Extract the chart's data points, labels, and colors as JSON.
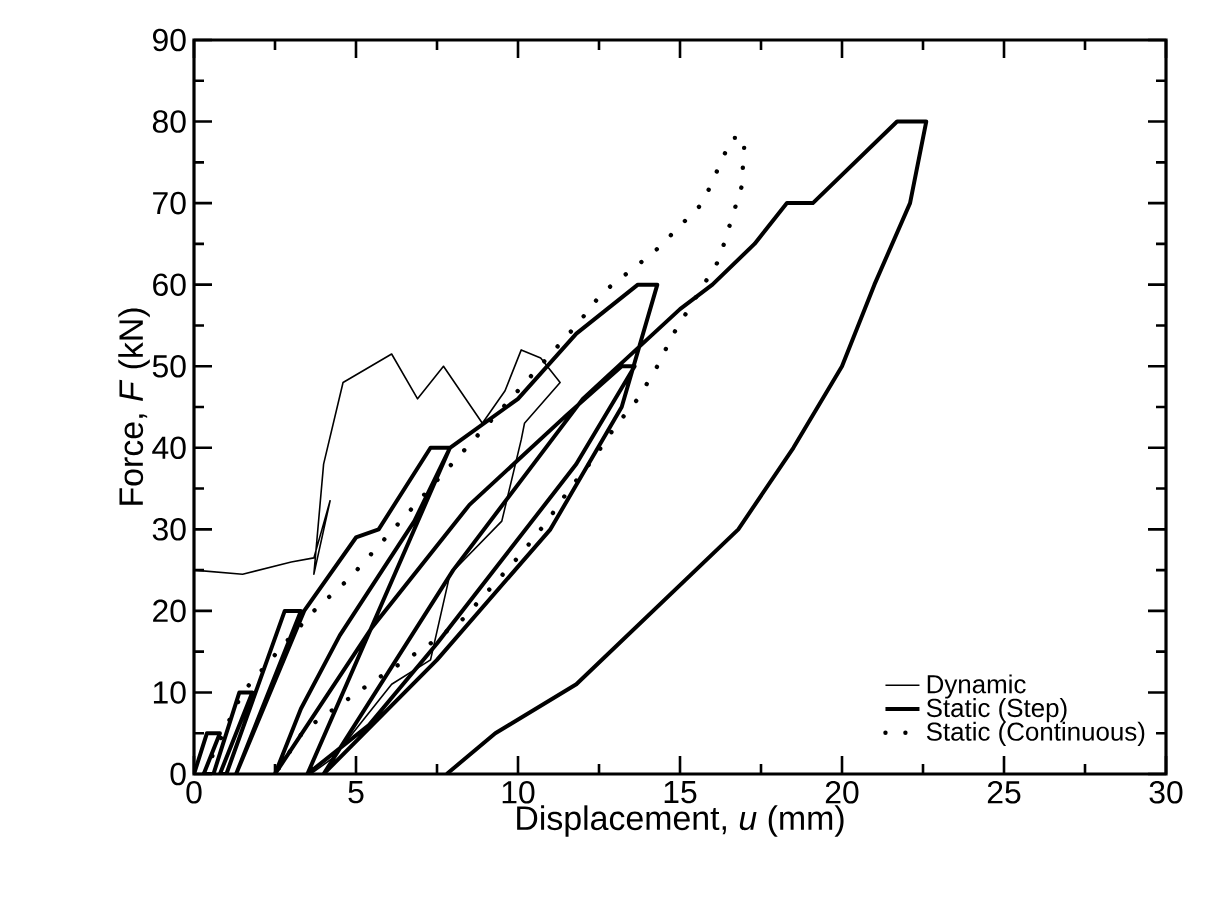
{
  "chart_data": {
    "type": "line",
    "xlabel": "Displacement, *u* (mm)",
    "ylabel": "Force, *F* (kN)",
    "xlim": [
      0,
      30
    ],
    "xticks": [
      0,
      5,
      10,
      15,
      20,
      25,
      30
    ],
    "ylim": [
      0,
      90
    ],
    "yticks": [
      0,
      10,
      20,
      30,
      40,
      50,
      60,
      70,
      80,
      90
    ],
    "grid": false,
    "legend": "bottom right",
    "series": [
      {
        "name": "Dynamic",
        "color": "#000000",
        "line_style": "solid",
        "x": [
          0,
          1.5,
          3,
          3.7,
          4.2,
          3.7,
          4.0,
          4.6,
          6.1,
          6.9,
          7.7,
          8.9,
          9.6,
          10.1,
          10.7,
          11.3,
          10.2,
          10.1,
          9.5,
          7.9,
          7.3,
          6.1,
          5.1,
          4.3,
          3.6
        ],
        "values": [
          25,
          24.5,
          26,
          26.5,
          33.5,
          24.5,
          38,
          48,
          51.5,
          46,
          50,
          43,
          47,
          52,
          51,
          48,
          43,
          41,
          31,
          24.5,
          14,
          11,
          6,
          2,
          0
        ]
      },
      {
        "name": "Static (Step)",
        "color": "#000000",
        "line_style": "solid",
        "x": [
          0,
          0.4,
          0.8,
          0.3,
          0.6,
          1.4,
          1.8,
          0.8,
          1.0,
          2.8,
          3.3,
          1.3,
          3.4,
          5.0,
          5.7,
          7.3,
          7.9,
          6.8,
          4.5,
          3.3,
          2.5,
          5.5,
          8.5,
          11.5,
          13.2,
          13.6,
          11.8,
          7.5,
          5.4,
          3.5,
          7.9,
          10.0,
          11.8,
          13.7,
          14.3,
          13.2,
          11.0,
          7.5,
          4.0,
          8.0,
          12.0,
          15.0,
          16.0,
          17.3,
          18.3,
          19.1,
          21.7,
          22.6,
          22.1,
          21.0,
          20.0,
          18.5,
          16.8,
          11.8,
          9.3,
          7.8
        ],
        "values": [
          0,
          5,
          5,
          0,
          0,
          10,
          10,
          0,
          0,
          20,
          20,
          0,
          20,
          29,
          30,
          40,
          40,
          31,
          17,
          8,
          0,
          18,
          33,
          44,
          50,
          50,
          38,
          16,
          6,
          0,
          40,
          46,
          54,
          60,
          60,
          45,
          30,
          14,
          0,
          25,
          46,
          57,
          60,
          65,
          70,
          70,
          80,
          80,
          70,
          60,
          50,
          40,
          30,
          11,
          5,
          0
        ]
      },
      {
        "name": "Static (Continuous)",
        "color": "#000000",
        "line_style": "dotted",
        "x": [
          0.3,
          1.5,
          2.8,
          3.7,
          4.8,
          5.7,
          7.5,
          10.0,
          11.8,
          12.6,
          14.2,
          15.7,
          16.6,
          17.0,
          16.9,
          16.2,
          14.8,
          14.3,
          13.7,
          13.0,
          12.3,
          11.6,
          10.9,
          10.1,
          9.2,
          8.3,
          7.3,
          5.4,
          3.4,
          2.5
        ],
        "values": [
          0,
          10,
          16,
          20,
          24,
          28,
          36,
          47,
          55,
          59,
          64,
          70,
          78,
          78,
          72,
          63,
          54,
          50,
          46,
          42.6,
          38.5,
          35,
          31,
          27,
          23,
          19,
          16,
          11,
          5.4,
          0
        ]
      }
    ]
  }
}
